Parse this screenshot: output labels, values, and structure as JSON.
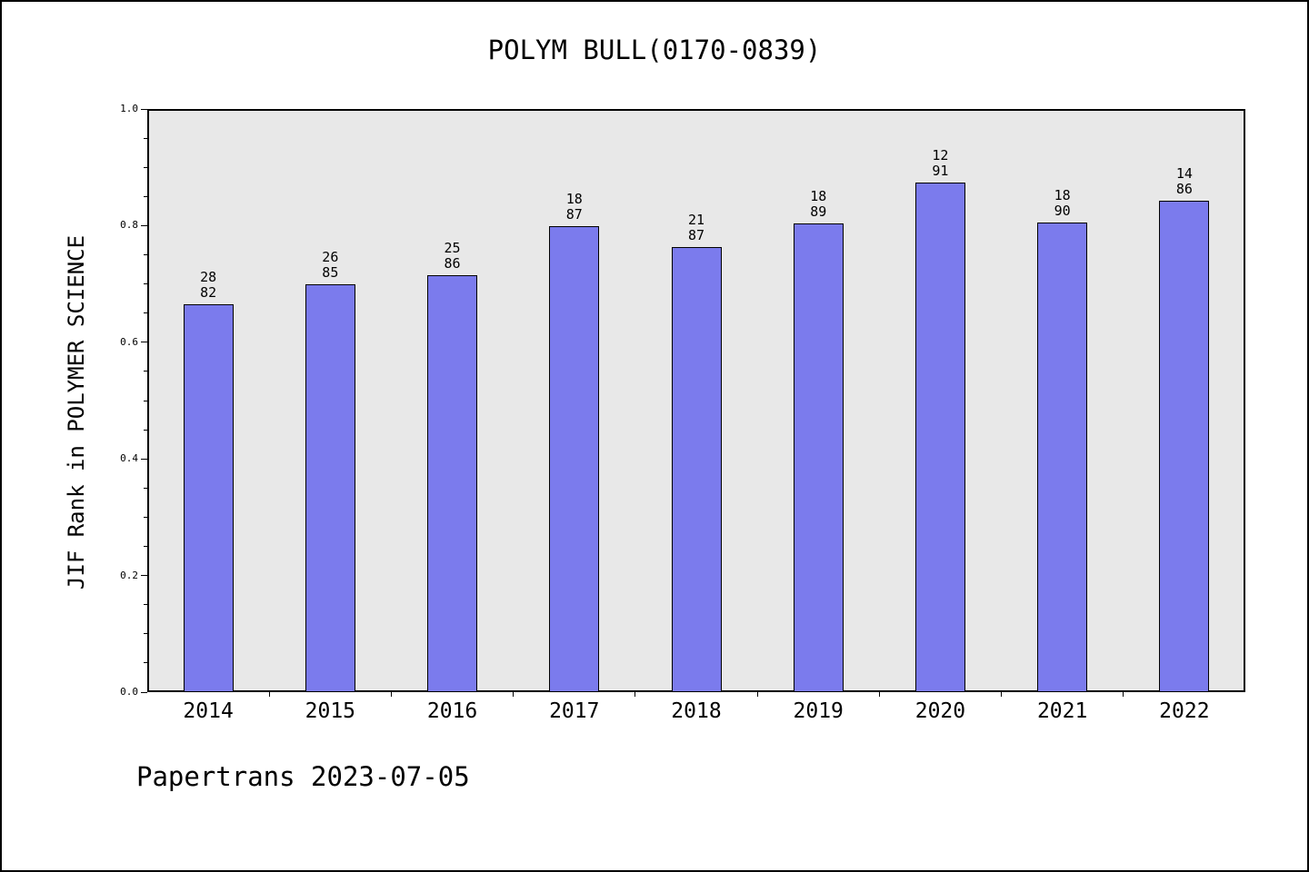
{
  "header": {
    "title": "POLYM BULL(0170-0839)"
  },
  "footer": {
    "text": "Papertrans 2023-07-05"
  },
  "chart_data": {
    "type": "bar",
    "title": "POLYM BULL(0170-0839)",
    "ylabel": "JIF Rank in POLYMER SCIENCE",
    "xlabel": "",
    "ylim": [
      0.0,
      1.0
    ],
    "ytick_values": [
      0.0,
      0.2,
      0.4,
      0.6,
      0.8,
      1.0
    ],
    "ytick_labels": [
      "0.0",
      "0.2",
      "0.4",
      "0.6",
      "0.8",
      "1.0"
    ],
    "minor_tick_step": 0.05,
    "categories": [
      "2014",
      "2015",
      "2016",
      "2017",
      "2018",
      "2019",
      "2020",
      "2021",
      "2022"
    ],
    "values": [
      0.665,
      0.7,
      0.715,
      0.799,
      0.764,
      0.803,
      0.874,
      0.806,
      0.843
    ],
    "bar_labels": [
      [
        "28",
        "82"
      ],
      [
        "26",
        "85"
      ],
      [
        "25",
        "86"
      ],
      [
        "18",
        "87"
      ],
      [
        "21",
        "87"
      ],
      [
        "18",
        "89"
      ],
      [
        "12",
        "91"
      ],
      [
        "18",
        "90"
      ],
      [
        "14",
        "86"
      ]
    ],
    "bar_color": "#7b7bed",
    "bar_edge_color": "#000000",
    "plot_bg": "#e8e8e8",
    "grid": false,
    "legend": "none"
  }
}
